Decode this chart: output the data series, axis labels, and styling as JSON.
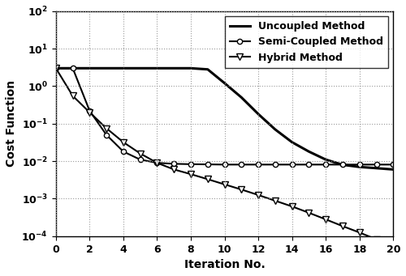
{
  "title": "",
  "xlabel": "Iteration No.",
  "ylabel": "Cost Function",
  "xlim": [
    0,
    20
  ],
  "ylim": [
    0.0001,
    100.0
  ],
  "xticks": [
    0,
    2,
    4,
    6,
    8,
    10,
    12,
    14,
    16,
    18,
    20
  ],
  "uncoupled": {
    "x": [
      0,
      1,
      2,
      3,
      4,
      5,
      6,
      7,
      8,
      9,
      10,
      11,
      12,
      13,
      14,
      15,
      16,
      17,
      18,
      19,
      20
    ],
    "y": [
      3.0,
      3.0,
      3.0,
      3.0,
      3.0,
      3.0,
      3.0,
      3.0,
      3.0,
      2.8,
      1.2,
      0.5,
      0.18,
      0.07,
      0.032,
      0.018,
      0.011,
      0.008,
      0.007,
      0.0065,
      0.006
    ],
    "label": "Uncoupled Method",
    "color": "#000000",
    "linewidth": 2.2,
    "marker": null
  },
  "semi_coupled": {
    "x": [
      0,
      1,
      2,
      3,
      4,
      5,
      6,
      7,
      8,
      9,
      10,
      11,
      12,
      13,
      14,
      15,
      16,
      17,
      18,
      19,
      20
    ],
    "y": [
      3.0,
      3.0,
      0.22,
      0.05,
      0.018,
      0.011,
      0.009,
      0.0085,
      0.0083,
      0.0082,
      0.0081,
      0.0081,
      0.0081,
      0.0081,
      0.0081,
      0.0081,
      0.0081,
      0.0081,
      0.0081,
      0.0081,
      0.0081
    ],
    "label": "Semi-Coupled Method",
    "color": "#000000",
    "linewidth": 1.5,
    "marker": "o"
  },
  "hybrid": {
    "x": [
      0,
      1,
      2,
      3,
      4,
      5,
      6,
      7,
      8,
      9,
      10,
      11,
      12,
      13,
      14,
      15,
      16,
      17,
      18,
      19,
      20
    ],
    "y": [
      3.0,
      0.55,
      0.2,
      0.075,
      0.032,
      0.016,
      0.009,
      0.006,
      0.0045,
      0.0033,
      0.0024,
      0.00175,
      0.00125,
      0.00088,
      0.00062,
      0.00042,
      0.00028,
      0.000185,
      0.000125,
      8.2e-05,
      5.2e-05
    ],
    "label": "Hybrid Method",
    "color": "#000000",
    "linewidth": 1.5,
    "marker": "v"
  },
  "legend_fontsize": 9,
  "axis_fontsize": 10,
  "tick_fontsize": 9,
  "background_color": "#ffffff",
  "grid_color": "#999999",
  "grid_linestyle": ":"
}
